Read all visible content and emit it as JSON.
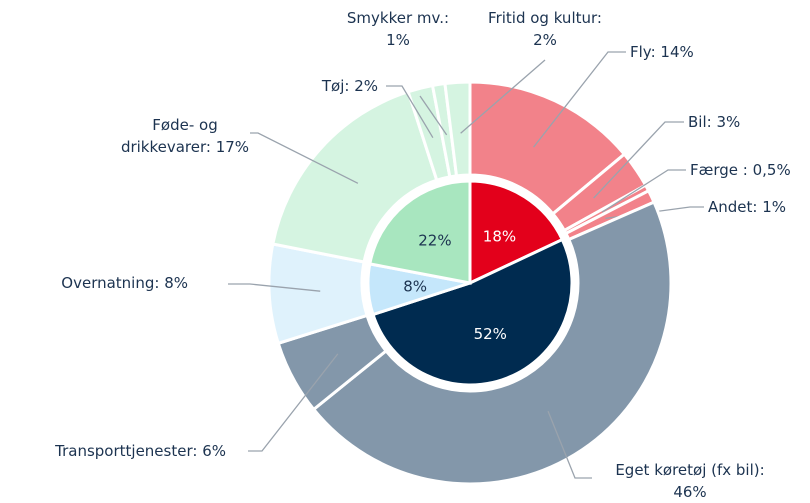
{
  "chart_data": {
    "type": "sunburst",
    "inner": {
      "values": [
        18,
        52,
        8,
        22
      ],
      "value_labels": [
        "18%",
        "52%",
        "8%",
        "22%"
      ],
      "colors": [
        "#e3001b",
        "#002b50",
        "#c5e7fb",
        "#a8e6bf"
      ]
    },
    "outer": {
      "values": [
        14,
        3,
        0.5,
        1,
        46,
        6,
        8,
        17,
        2,
        1,
        2
      ],
      "value_labels": [
        "Fly: 14%",
        "Bil: 3%",
        "Færge : 0,5%",
        "Andet: 1%",
        "Eget køretøj (fx bil):\n46%",
        "Transporttjenester: 6%",
        "Overnatning: 8%",
        "Føde- og\ndrikkevarer: 17%",
        "Tøj: 2%",
        "Smykker mv.:\n1%",
        "Fritid og kultur:\n2%"
      ],
      "colors": [
        "#f2828a",
        "#f2828a",
        "#f2828a",
        "#f2828a",
        "#8397aa",
        "#8397aa",
        "#dff2fc",
        "#d5f4e1",
        "#d5f4e1",
        "#d5f4e1",
        "#d5f4e1"
      ]
    }
  }
}
